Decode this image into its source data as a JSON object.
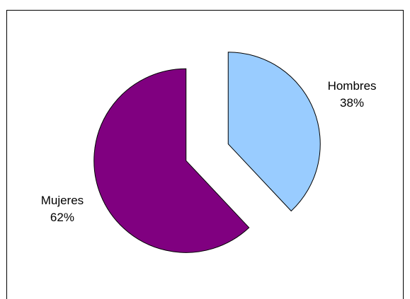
{
  "chart_data": {
    "type": "pie",
    "categories": [
      "Hombres",
      "Mujeres"
    ],
    "values": [
      38,
      62
    ],
    "value_labels": [
      "38%",
      "62%"
    ],
    "colors": [
      "#99ccff",
      "#800080"
    ]
  }
}
